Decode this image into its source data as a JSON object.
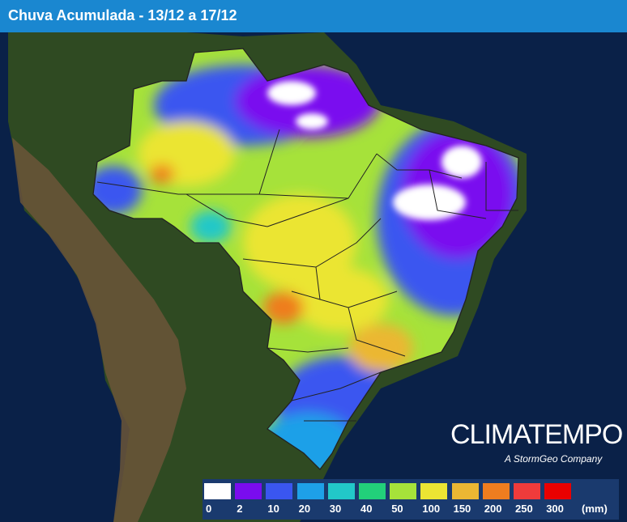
{
  "header": {
    "title": "Chuva Acumulada - 13/12 a 17/12"
  },
  "brand": {
    "name": "CLIMATEMPO",
    "tagline": "A StormGeo Company"
  },
  "legend": {
    "unit": "(mm)",
    "ticks": [
      "0",
      "2",
      "10",
      "20",
      "30",
      "40",
      "50",
      "100",
      "150",
      "200",
      "250",
      "300"
    ],
    "colors": [
      "#ffffff",
      "#7a0cef",
      "#3a56f0",
      "#1ea0e8",
      "#22c8c8",
      "#22d07a",
      "#a6e23a",
      "#ebe533",
      "#ebb733",
      "#ef7d1f",
      "#ef3b3b",
      "#ea0000"
    ]
  },
  "map": {
    "colors": {
      "ocean": "#0a2148",
      "land_green": "#2f4a22",
      "land_brown": "#6b5538",
      "state_border": "#222222"
    }
  }
}
